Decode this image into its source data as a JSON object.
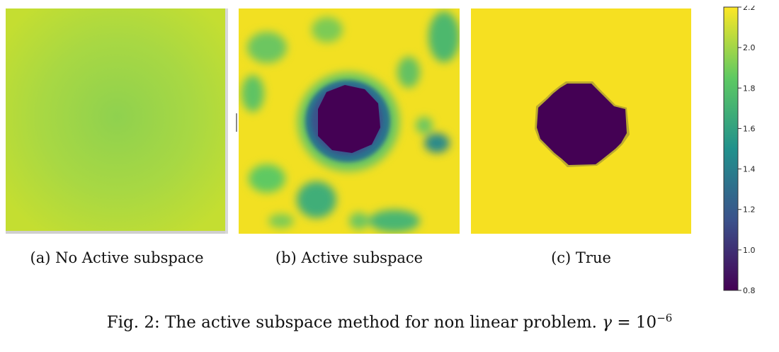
{
  "panels": [
    {
      "id": "a",
      "caption": "(a) No Active subspace"
    },
    {
      "id": "b",
      "caption": "(b) Active subspace"
    },
    {
      "id": "c",
      "caption": "(c) True"
    }
  ],
  "figure_caption": {
    "prefix": "Fig. 2: The active subspace method for non linear problem.",
    "symbol": "γ",
    "equals": "= 10",
    "exponent": "−6"
  },
  "colorbar": {
    "min": 0.8,
    "max": 2.2,
    "ticks": [
      "2.2",
      "2.0",
      "1.8",
      "1.6",
      "1.4",
      "1.2",
      "1.0",
      "0.8"
    ],
    "colormap": "viridis",
    "stops": [
      "#440154",
      "#3b528b",
      "#21918c",
      "#5ec962",
      "#fde725"
    ]
  },
  "colors": {
    "smooth_center": "#8fd14f",
    "smooth_edge": "#c4de31",
    "background_high": "#f6e021",
    "inclusion_low": "#440154",
    "ring_mid": "#2c728e",
    "speckle_mid": "#3aad7a"
  }
}
